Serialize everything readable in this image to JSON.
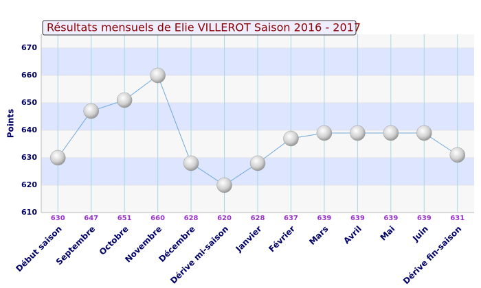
{
  "chart_data": {
    "type": "line",
    "title": "Résultats mensuels de Elie VILLEROT Saison 2016 - 2017",
    "y_label": "Points",
    "categories": [
      "Début saison",
      "Septembre",
      "Octobre",
      "Novembre",
      "Décembre",
      "Dérive mi-saison",
      "Janvier",
      "Février",
      "Mars",
      "Avril",
      "Mai",
      "Juin",
      "Dérive fin-saison"
    ],
    "series": [
      {
        "name": "Points",
        "color": "#6fa8dc",
        "values": [
          630,
          647,
          651,
          660,
          628,
          620,
          628,
          637,
          639,
          639,
          639,
          639,
          631
        ]
      }
    ],
    "ylim": [
      610,
      675
    ],
    "yticks": [
      610,
      620,
      630,
      640,
      650,
      660,
      670
    ],
    "grid": true
  }
}
